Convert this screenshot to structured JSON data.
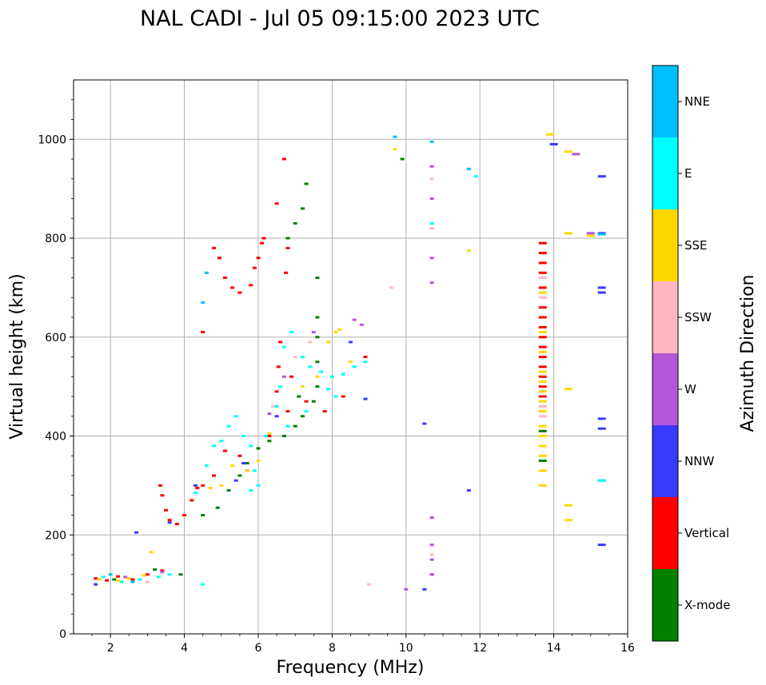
{
  "chart_data": {
    "type": "scatter",
    "title": "NAL CADI - Jul 05 09:15:00 2023 UTC",
    "xlabel": "Frequency (MHz)",
    "ylabel": "Virtual height (km)",
    "xlim": [
      1,
      16
    ],
    "ylim": [
      0,
      1120
    ],
    "xticks": [
      2,
      4,
      6,
      8,
      10,
      12,
      14,
      16
    ],
    "yticks": [
      0,
      200,
      400,
      600,
      800,
      1000
    ],
    "grid": true,
    "colorbar": {
      "title": "Azimuth Direction",
      "categories": [
        {
          "label": "X-mode",
          "color": "#008000"
        },
        {
          "label": "Vertical",
          "color": "#ff0000"
        },
        {
          "label": "NNW",
          "color": "#3a3aff"
        },
        {
          "label": "W",
          "color": "#b456d6"
        },
        {
          "label": "SSW",
          "color": "#ffb6c1"
        },
        {
          "label": "SSE",
          "color": "#ffd700"
        },
        {
          "label": "E",
          "color": "#00ffff"
        },
        {
          "label": "NNE",
          "color": "#00bfff"
        }
      ]
    },
    "series": [
      {
        "name": "Vertical",
        "points": [
          [
            1.6,
            112
          ],
          [
            1.9,
            108
          ],
          [
            2.2,
            116
          ],
          [
            2.6,
            110
          ],
          [
            3.0,
            120
          ],
          [
            3.4,
            128
          ],
          [
            3.35,
            300
          ],
          [
            3.4,
            280
          ],
          [
            3.5,
            250
          ],
          [
            3.6,
            230
          ],
          [
            3.8,
            222
          ],
          [
            4.0,
            240
          ],
          [
            4.2,
            270
          ],
          [
            4.35,
            295
          ],
          [
            4.5,
            610
          ],
          [
            4.8,
            780
          ],
          [
            4.95,
            760
          ],
          [
            5.1,
            720
          ],
          [
            5.3,
            700
          ],
          [
            5.5,
            690
          ],
          [
            5.8,
            705
          ],
          [
            5.9,
            740
          ],
          [
            6.1,
            790
          ],
          [
            6.15,
            800
          ],
          [
            6.0,
            760
          ],
          [
            6.5,
            870
          ],
          [
            6.7,
            960
          ],
          [
            6.8,
            780
          ],
          [
            6.75,
            730
          ],
          [
            6.6,
            590
          ],
          [
            6.55,
            540
          ],
          [
            6.5,
            490
          ],
          [
            6.9,
            520
          ],
          [
            6.8,
            450
          ],
          [
            5.1,
            370
          ],
          [
            5.5,
            360
          ],
          [
            6.0,
            375
          ],
          [
            6.3,
            400
          ],
          [
            7.3,
            470
          ],
          [
            7.8,
            450
          ],
          [
            8.3,
            480
          ],
          [
            8.9,
            560
          ],
          [
            4.8,
            320
          ],
          [
            4.5,
            300
          ],
          [
            5.7,
            330
          ],
          [
            13.7,
            790
          ],
          [
            13.7,
            770
          ],
          [
            13.7,
            750
          ],
          [
            13.7,
            730
          ],
          [
            13.7,
            700
          ],
          [
            13.7,
            660
          ],
          [
            13.7,
            640
          ],
          [
            13.7,
            620
          ],
          [
            13.7,
            600
          ],
          [
            13.7,
            580
          ],
          [
            13.7,
            560
          ],
          [
            13.7,
            540
          ],
          [
            13.7,
            520
          ],
          [
            13.7,
            500
          ],
          [
            13.7,
            480
          ]
        ]
      },
      {
        "name": "X-mode",
        "points": [
          [
            2.1,
            110
          ],
          [
            3.2,
            130
          ],
          [
            3.9,
            120
          ],
          [
            4.5,
            240
          ],
          [
            4.9,
            255
          ],
          [
            5.2,
            290
          ],
          [
            5.5,
            320
          ],
          [
            5.7,
            345
          ],
          [
            6.0,
            375
          ],
          [
            6.3,
            390
          ],
          [
            6.7,
            400
          ],
          [
            7.0,
            420
          ],
          [
            7.2,
            440
          ],
          [
            7.5,
            470
          ],
          [
            7.6,
            500
          ],
          [
            7.6,
            550
          ],
          [
            7.6,
            600
          ],
          [
            7.6,
            640
          ],
          [
            7.6,
            720
          ],
          [
            6.8,
            800
          ],
          [
            7.0,
            830
          ],
          [
            7.2,
            860
          ],
          [
            7.3,
            910
          ],
          [
            7.1,
            480
          ],
          [
            9.9,
            960
          ],
          [
            13.7,
            350
          ],
          [
            13.7,
            410
          ]
        ]
      },
      {
        "name": "NNW",
        "points": [
          [
            1.6,
            100
          ],
          [
            2.7,
            205
          ],
          [
            3.6,
            225
          ],
          [
            4.3,
            300
          ],
          [
            5.4,
            310
          ],
          [
            5.6,
            345
          ],
          [
            6.5,
            440
          ],
          [
            8.5,
            590
          ],
          [
            8.9,
            475
          ],
          [
            10.5,
            90
          ],
          [
            10.7,
            120
          ],
          [
            10.5,
            425
          ],
          [
            11.7,
            290
          ],
          [
            14.0,
            990
          ],
          [
            15.3,
            925
          ],
          [
            15.3,
            810
          ],
          [
            15.3,
            700
          ],
          [
            15.3,
            690
          ],
          [
            15.3,
            435
          ],
          [
            15.3,
            415
          ],
          [
            15.3,
            310
          ],
          [
            15.3,
            180
          ]
        ]
      },
      {
        "name": "W",
        "points": [
          [
            2.4,
            115
          ],
          [
            3.4,
            125
          ],
          [
            6.3,
            445
          ],
          [
            6.7,
            520
          ],
          [
            7.5,
            610
          ],
          [
            8.6,
            635
          ],
          [
            8.8,
            625
          ],
          [
            10.0,
            90
          ],
          [
            10.7,
            120
          ],
          [
            10.7,
            150
          ],
          [
            10.7,
            180
          ],
          [
            10.7,
            235
          ],
          [
            10.7,
            710
          ],
          [
            10.7,
            760
          ],
          [
            10.7,
            880
          ],
          [
            10.7,
            945
          ],
          [
            14.6,
            970
          ],
          [
            15.0,
            810
          ]
        ]
      },
      {
        "name": "SSW",
        "points": [
          [
            3.0,
            105
          ],
          [
            6.4,
            460
          ],
          [
            7.0,
            560
          ],
          [
            7.4,
            590
          ],
          [
            9.0,
            100
          ],
          [
            9.6,
            700
          ],
          [
            10.7,
            820
          ],
          [
            10.7,
            920
          ],
          [
            10.7,
            160
          ],
          [
            13.7,
            440
          ],
          [
            13.7,
            460
          ],
          [
            13.7,
            680
          ],
          [
            13.7,
            720
          ]
        ]
      },
      {
        "name": "SSE",
        "points": [
          [
            1.7,
            110
          ],
          [
            2.2,
            108
          ],
          [
            2.5,
            112
          ],
          [
            2.9,
            118
          ],
          [
            3.1,
            165
          ],
          [
            4.7,
            295
          ],
          [
            5.0,
            300
          ],
          [
            5.3,
            340
          ],
          [
            5.7,
            330
          ],
          [
            6.0,
            350
          ],
          [
            6.3,
            405
          ],
          [
            7.2,
            500
          ],
          [
            7.6,
            520
          ],
          [
            7.9,
            590
          ],
          [
            8.1,
            610
          ],
          [
            8.2,
            615
          ],
          [
            8.5,
            550
          ],
          [
            9.7,
            980
          ],
          [
            11.7,
            775
          ],
          [
            13.7,
            300
          ],
          [
            13.7,
            330
          ],
          [
            13.7,
            360
          ],
          [
            13.7,
            380
          ],
          [
            13.7,
            400
          ],
          [
            13.7,
            420
          ],
          [
            13.7,
            450
          ],
          [
            13.7,
            470
          ],
          [
            13.7,
            490
          ],
          [
            13.7,
            510
          ],
          [
            13.7,
            530
          ],
          [
            13.7,
            570
          ],
          [
            13.7,
            610
          ],
          [
            13.7,
            690
          ],
          [
            13.9,
            1010
          ],
          [
            14.4,
            260
          ],
          [
            14.4,
            230
          ],
          [
            14.4,
            495
          ],
          [
            14.4,
            975
          ],
          [
            14.4,
            810
          ],
          [
            15.0,
            805
          ]
        ]
      },
      {
        "name": "E",
        "points": [
          [
            1.8,
            115
          ],
          [
            2.3,
            105
          ],
          [
            2.8,
            110
          ],
          [
            3.3,
            115
          ],
          [
            3.6,
            120
          ],
          [
            4.3,
            285
          ],
          [
            4.5,
            100
          ],
          [
            4.6,
            340
          ],
          [
            4.8,
            380
          ],
          [
            5.0,
            390
          ],
          [
            5.2,
            420
          ],
          [
            5.4,
            440
          ],
          [
            5.6,
            400
          ],
          [
            5.8,
            380
          ],
          [
            5.9,
            330
          ],
          [
            6.0,
            300
          ],
          [
            6.2,
            400
          ],
          [
            6.5,
            460
          ],
          [
            6.6,
            500
          ],
          [
            6.7,
            580
          ],
          [
            6.9,
            610
          ],
          [
            7.2,
            560
          ],
          [
            7.4,
            540
          ],
          [
            7.7,
            530
          ],
          [
            8.0,
            520
          ],
          [
            8.3,
            525
          ],
          [
            8.6,
            540
          ],
          [
            8.9,
            550
          ],
          [
            7.9,
            495
          ],
          [
            8.1,
            480
          ],
          [
            6.8,
            420
          ],
          [
            7.3,
            450
          ],
          [
            5.8,
            290
          ],
          [
            10.7,
            830
          ],
          [
            11.9,
            925
          ],
          [
            15.3,
            310
          ]
        ]
      },
      {
        "name": "NNE",
        "points": [
          [
            2.0,
            120
          ],
          [
            2.6,
            105
          ],
          [
            4.5,
            670
          ],
          [
            4.6,
            730
          ],
          [
            9.7,
            1005
          ],
          [
            10.7,
            995
          ],
          [
            11.7,
            940
          ],
          [
            15.3,
            808
          ]
        ]
      }
    ]
  }
}
